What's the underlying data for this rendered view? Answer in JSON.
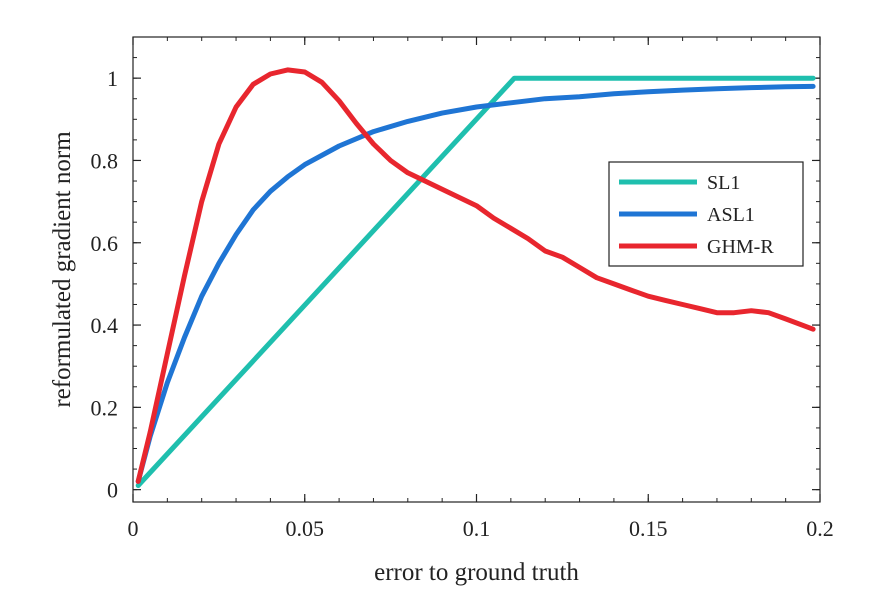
{
  "chart_data": {
    "type": "line",
    "title": "",
    "xlabel": "error to ground truth",
    "ylabel": "reformulated gradient norm",
    "xlim": [
      0,
      0.2
    ],
    "ylim": [
      -0.03,
      1.1
    ],
    "xticks": [
      {
        "value": 0,
        "label": "0"
      },
      {
        "value": 0.05,
        "label": "0.05"
      },
      {
        "value": 0.1,
        "label": "0.1"
      },
      {
        "value": 0.15,
        "label": "0.15"
      },
      {
        "value": 0.2,
        "label": "0.2"
      }
    ],
    "yticks": [
      {
        "value": 0,
        "label": "0"
      },
      {
        "value": 0.2,
        "label": "0.2"
      },
      {
        "value": 0.4,
        "label": "0.4"
      },
      {
        "value": 0.6,
        "label": "0.6"
      },
      {
        "value": 0.8,
        "label": "0.8"
      },
      {
        "value": 1,
        "label": "1"
      }
    ],
    "grid": false,
    "legend_position": "right",
    "series": [
      {
        "name": "SL1",
        "color": "#1fbfae",
        "x": [
          0.0015,
          0.111,
          0.198
        ],
        "y": [
          0.01,
          1.0,
          1.0
        ]
      },
      {
        "name": "ASL1",
        "color": "#1f75d4",
        "x": [
          0.0015,
          0.005,
          0.01,
          0.015,
          0.02,
          0.025,
          0.03,
          0.035,
          0.04,
          0.045,
          0.05,
          0.06,
          0.07,
          0.08,
          0.09,
          0.1,
          0.11,
          0.12,
          0.13,
          0.14,
          0.15,
          0.16,
          0.17,
          0.18,
          0.19,
          0.198
        ],
        "y": [
          0.02,
          0.13,
          0.26,
          0.37,
          0.47,
          0.55,
          0.62,
          0.68,
          0.725,
          0.76,
          0.79,
          0.835,
          0.87,
          0.895,
          0.915,
          0.93,
          0.94,
          0.95,
          0.955,
          0.962,
          0.967,
          0.971,
          0.974,
          0.977,
          0.979,
          0.98
        ]
      },
      {
        "name": "GHM-R",
        "color": "#e8262e",
        "x": [
          0.0015,
          0.005,
          0.01,
          0.015,
          0.02,
          0.025,
          0.03,
          0.035,
          0.04,
          0.045,
          0.05,
          0.055,
          0.06,
          0.065,
          0.07,
          0.075,
          0.08,
          0.085,
          0.09,
          0.095,
          0.1,
          0.105,
          0.11,
          0.115,
          0.12,
          0.125,
          0.13,
          0.135,
          0.14,
          0.145,
          0.15,
          0.155,
          0.16,
          0.165,
          0.17,
          0.175,
          0.18,
          0.185,
          0.19,
          0.198
        ],
        "y": [
          0.02,
          0.14,
          0.33,
          0.52,
          0.7,
          0.84,
          0.93,
          0.985,
          1.01,
          1.02,
          1.015,
          0.99,
          0.945,
          0.89,
          0.84,
          0.8,
          0.77,
          0.75,
          0.73,
          0.71,
          0.69,
          0.66,
          0.635,
          0.61,
          0.58,
          0.565,
          0.54,
          0.515,
          0.5,
          0.485,
          0.47,
          0.46,
          0.45,
          0.44,
          0.43,
          0.43,
          0.435,
          0.43,
          0.415,
          0.39
        ]
      }
    ]
  }
}
